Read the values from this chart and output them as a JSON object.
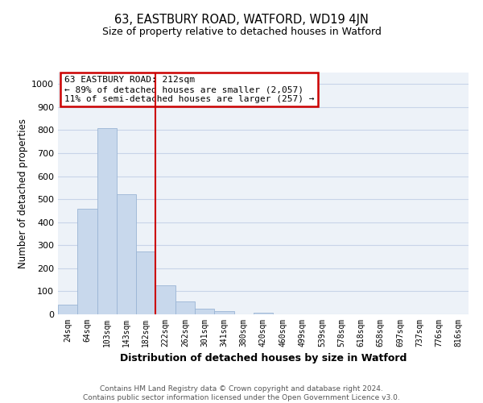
{
  "title": "63, EASTBURY ROAD, WATFORD, WD19 4JN",
  "subtitle": "Size of property relative to detached houses in Watford",
  "xlabel": "Distribution of detached houses by size in Watford",
  "ylabel": "Number of detached properties",
  "bar_labels": [
    "24sqm",
    "64sqm",
    "103sqm",
    "143sqm",
    "182sqm",
    "222sqm",
    "262sqm",
    "301sqm",
    "341sqm",
    "380sqm",
    "420sqm",
    "460sqm",
    "499sqm",
    "539sqm",
    "578sqm",
    "618sqm",
    "658sqm",
    "697sqm",
    "737sqm",
    "776sqm",
    "816sqm"
  ],
  "bar_values": [
    43,
    460,
    810,
    522,
    272,
    125,
    57,
    23,
    13,
    0,
    8,
    0,
    0,
    0,
    0,
    0,
    0,
    0,
    0,
    0,
    0
  ],
  "bar_color": "#c8d8ec",
  "bar_edgecolor": "#9ab5d5",
  "vline_color": "#cc0000",
  "vline_pos": 4.5,
  "annotation_line1": "63 EASTBURY ROAD: 212sqm",
  "annotation_line2": "← 89% of detached houses are smaller (2,057)",
  "annotation_line3": "11% of semi-detached houses are larger (257) →",
  "annotation_box_color": "#cc0000",
  "ylim": [
    0,
    1050
  ],
  "yticks": [
    0,
    100,
    200,
    300,
    400,
    500,
    600,
    700,
    800,
    900,
    1000
  ],
  "grid_color": "#c8d4e8",
  "bg_color": "#edf2f8",
  "footer_line1": "Contains HM Land Registry data © Crown copyright and database right 2024.",
  "footer_line2": "Contains public sector information licensed under the Open Government Licence v3.0."
}
